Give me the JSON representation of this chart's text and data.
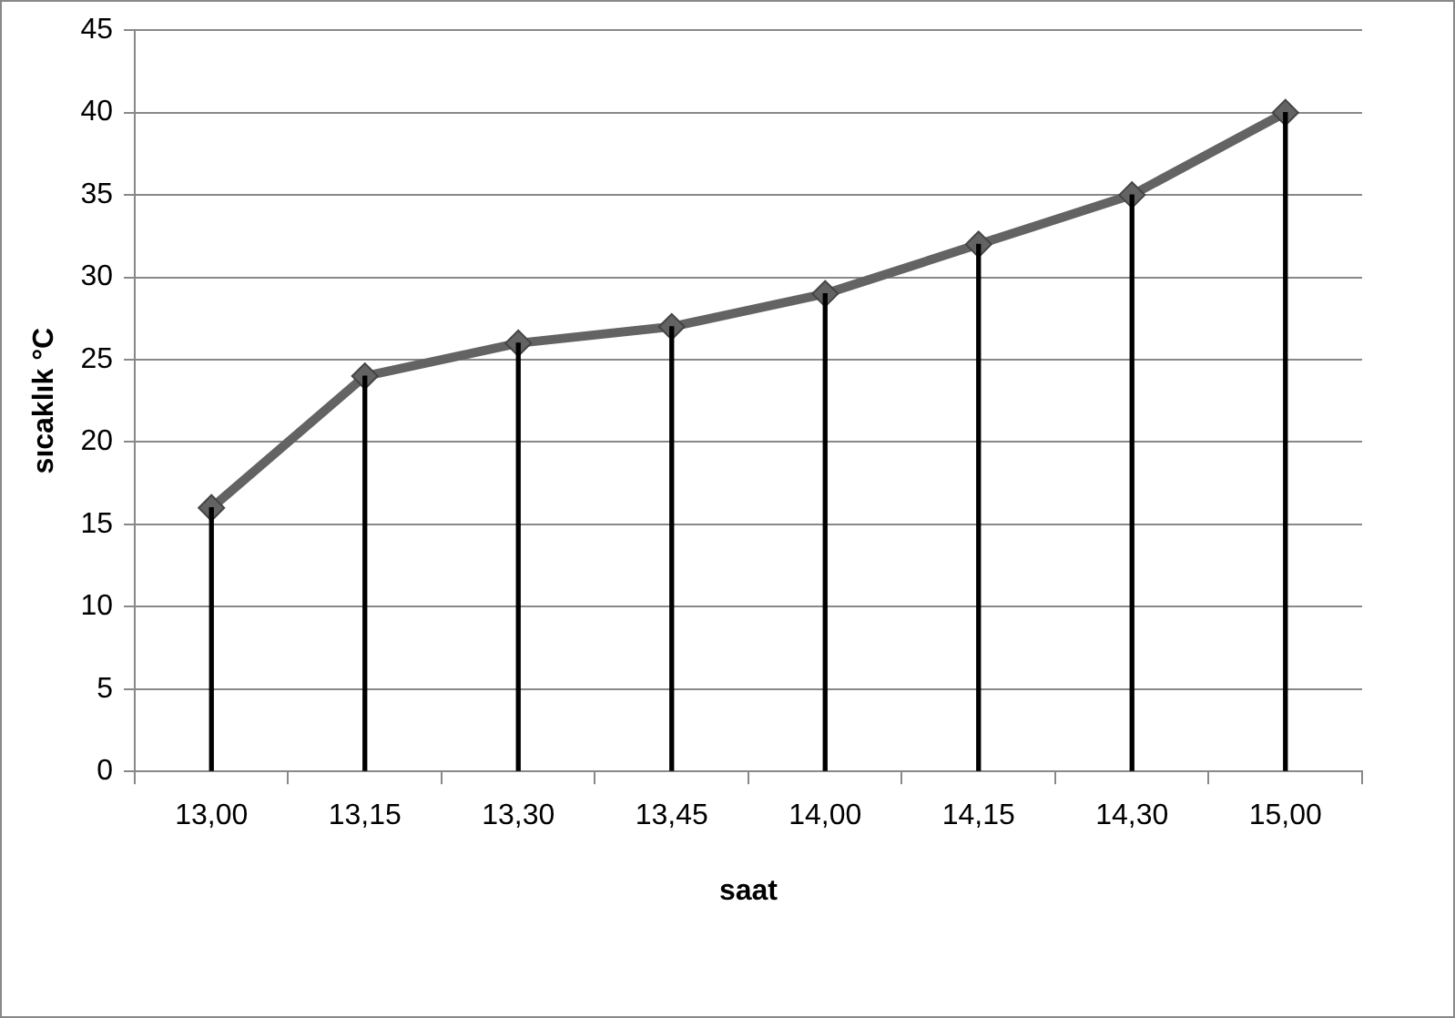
{
  "chart_data": {
    "type": "line",
    "xlabel": "saat",
    "ylabel": "sıcaklık °C",
    "categories": [
      "13,00",
      "13,15",
      "13,30",
      "13,45",
      "14,00",
      "14,15",
      "14,30",
      "15,00"
    ],
    "series": [
      {
        "color": "#636363",
        "values": [
          16,
          24,
          26,
          27,
          29,
          32,
          35,
          40
        ]
      },
      {
        "type": "bar",
        "color": "#000000",
        "values": [
          16,
          24,
          26,
          27,
          29,
          32,
          35,
          40
        ]
      }
    ],
    "ylim": [
      0,
      45
    ],
    "yticks": [
      0,
      5,
      10,
      15,
      20,
      25,
      30,
      35,
      40,
      45
    ],
    "grid": "y",
    "legend": false,
    "marker": "diamond",
    "line_style": "solid"
  }
}
